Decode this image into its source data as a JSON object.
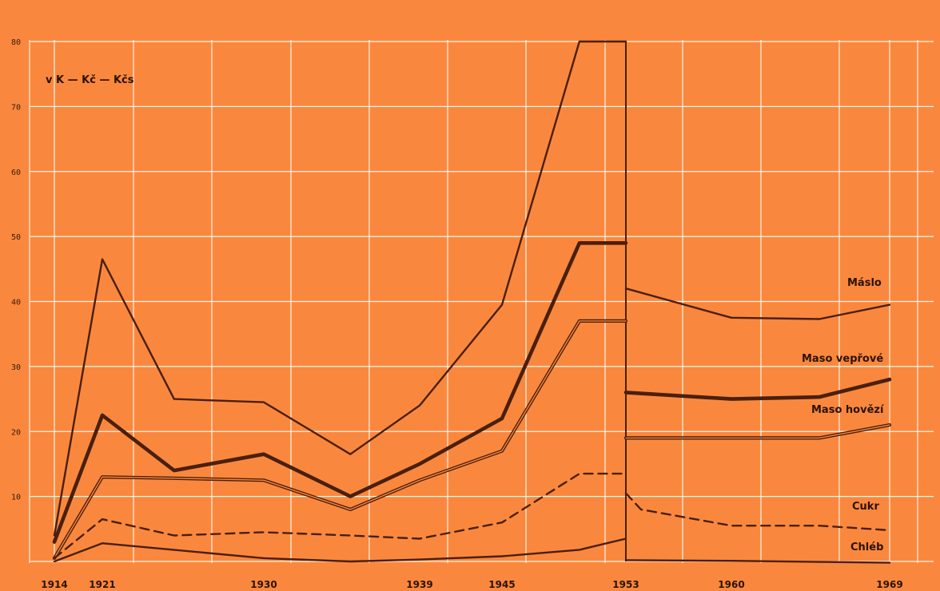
{
  "chart_data": {
    "type": "line",
    "unit_label": "v K — Kč — Kčs",
    "x_ticks": [
      "1914",
      "1921",
      "1930",
      "1939",
      "1945",
      "1953",
      "1960",
      "1969"
    ],
    "y_ticks": [
      "10",
      "20",
      "30",
      "40",
      "50",
      "60",
      "70",
      "80"
    ],
    "ylim": [
      0,
      80
    ],
    "grid": true,
    "colors": {
      "background": "#f9883e",
      "grid": "#fff4e6",
      "line": "#4a1f0e"
    },
    "series": [
      {
        "name": "Máslo",
        "style": "solid",
        "segments": [
          [
            [
              1914,
              4
            ],
            [
              1921,
              46.5
            ],
            [
              1925,
              25
            ],
            [
              1930,
              24.5
            ],
            [
              1935,
              16.5
            ],
            [
              1939,
              24
            ],
            [
              1945,
              39.5
            ],
            [
              1950,
              80
            ],
            [
              1953,
              80
            ]
          ],
          [
            [
              1953,
              42
            ],
            [
              1960,
              37.5
            ],
            [
              1965,
              37.3
            ],
            [
              1969,
              39.5
            ]
          ]
        ]
      },
      {
        "name": "Maso vepřové",
        "style": "thick",
        "segments": [
          [
            [
              1914,
              3
            ],
            [
              1921,
              22.5
            ],
            [
              1925,
              14
            ],
            [
              1930,
              16.5
            ],
            [
              1935,
              10
            ],
            [
              1939,
              15
            ],
            [
              1945,
              22
            ],
            [
              1950,
              49
            ],
            [
              1953,
              49
            ]
          ],
          [
            [
              1953,
              26
            ],
            [
              1960,
              25
            ],
            [
              1965,
              25.3
            ],
            [
              1969,
              28
            ]
          ]
        ]
      },
      {
        "name": "Maso hovězí",
        "style": "double",
        "segments": [
          [
            [
              1914,
              0.5
            ],
            [
              1921,
              13
            ],
            [
              1925,
              12.8
            ],
            [
              1930,
              12.5
            ],
            [
              1935,
              8
            ],
            [
              1939,
              12.5
            ],
            [
              1945,
              17
            ],
            [
              1950,
              37
            ],
            [
              1953,
              37
            ]
          ],
          [
            [
              1953,
              19
            ],
            [
              1960,
              19
            ],
            [
              1965,
              19
            ],
            [
              1969,
              21
            ]
          ]
        ]
      },
      {
        "name": "Cukr",
        "style": "dashed",
        "segments": [
          [
            [
              1914,
              0.5
            ],
            [
              1921,
              6.5
            ],
            [
              1925,
              4
            ],
            [
              1930,
              4.5
            ],
            [
              1935,
              4
            ],
            [
              1939,
              3.5
            ],
            [
              1945,
              6
            ],
            [
              1950,
              13.5
            ],
            [
              1953,
              13.5
            ]
          ],
          [
            [
              1953,
              10.5
            ],
            [
              1954,
              8
            ],
            [
              1960,
              5.5
            ],
            [
              1965,
              5.5
            ],
            [
              1969,
              4.8
            ]
          ]
        ]
      },
      {
        "name": "Chléb",
        "style": "solid",
        "segments": [
          [
            [
              1914,
              0
            ],
            [
              1921,
              2.8
            ],
            [
              1930,
              0.5
            ],
            [
              1935,
              0
            ],
            [
              1939,
              0.3
            ],
            [
              1945,
              0.8
            ],
            [
              1950,
              1.8
            ],
            [
              1953,
              3.5
            ]
          ],
          [
            [
              1953,
              0.2
            ],
            [
              1960,
              0.1
            ],
            [
              1969,
              -0.2
            ]
          ]
        ]
      }
    ]
  }
}
